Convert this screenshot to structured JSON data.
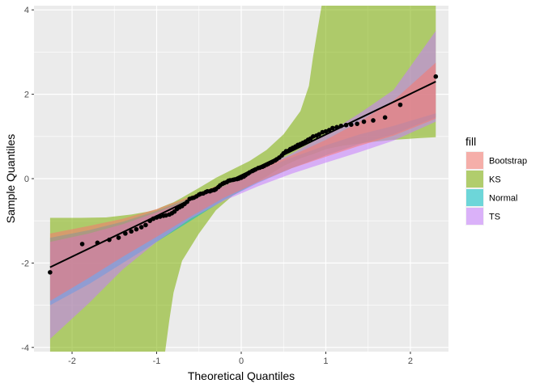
{
  "chart_data": {
    "type": "scatter",
    "title": "",
    "xlabel": "Theoretical Quantiles",
    "ylabel": "Sample Quantiles",
    "xlim": [
      -2.45,
      2.45
    ],
    "ylim": [
      -4.1,
      4.1
    ],
    "x_ticks": [
      -2,
      -1,
      0,
      1,
      2
    ],
    "y_ticks": [
      -4,
      -2,
      0,
      2,
      4
    ],
    "x_tick_labels": [
      "-2",
      "-1",
      "0",
      "1",
      "2"
    ],
    "y_tick_labels": [
      "-4",
      "-2",
      "0",
      "2",
      "4"
    ],
    "grid": true,
    "legend": {
      "title": "fill",
      "placement": "right",
      "entries": [
        {
          "name": "Bootstrap",
          "color": "#F8766D"
        },
        {
          "name": "KS",
          "color": "#7CAE00"
        },
        {
          "name": "Normal",
          "color": "#00BFC4"
        },
        {
          "name": "TS",
          "color": "#C77CFF"
        }
      ]
    },
    "bands": [
      {
        "name": "KS",
        "color": "#7CAE00",
        "x": [
          -2.26,
          -1.9,
          -1.6,
          -1.3,
          -1.1,
          -1.0,
          -0.95,
          -0.9,
          -0.85,
          -0.8,
          -0.7,
          -0.5,
          -0.3,
          -0.1,
          0.1,
          0.3,
          0.5,
          0.7,
          0.8,
          0.85,
          0.9,
          0.95,
          1.0,
          1.2,
          1.5,
          1.8,
          2.1,
          2.3
        ],
        "upper": [
          -0.93,
          -0.93,
          -0.92,
          -0.85,
          -0.78,
          -0.73,
          -0.68,
          -0.64,
          -0.6,
          -0.56,
          -0.45,
          -0.22,
          0.02,
          0.22,
          0.42,
          0.68,
          1.05,
          1.6,
          2.2,
          2.9,
          3.5,
          4.1,
          4.1,
          4.1,
          4.1,
          4.1,
          4.1,
          4.1
        ],
        "lower": [
          -4.1,
          -4.1,
          -4.1,
          -4.1,
          -4.1,
          -4.1,
          -4.1,
          -4.1,
          -3.35,
          -2.7,
          -1.95,
          -1.3,
          -0.75,
          -0.4,
          -0.18,
          0.05,
          0.3,
          0.48,
          0.55,
          0.58,
          0.62,
          0.66,
          0.7,
          0.78,
          0.86,
          0.92,
          0.96,
          0.98
        ]
      },
      {
        "name": "Normal",
        "color": "#00BFC4",
        "x": [
          -2.26,
          -1.8,
          -1.4,
          -1.0,
          -0.6,
          -0.2,
          0.2,
          0.6,
          1.0,
          1.4,
          1.8,
          2.3
        ],
        "upper": [
          -1.4,
          -1.22,
          -1.02,
          -0.76,
          -0.46,
          -0.14,
          0.19,
          0.5,
          0.79,
          1.05,
          1.25,
          1.55
        ],
        "lower": [
          -3.0,
          -2.5,
          -2.0,
          -1.5,
          -1.0,
          -0.5,
          -0.1,
          0.25,
          0.55,
          0.82,
          1.05,
          1.45
        ]
      },
      {
        "name": "TS",
        "color": "#C77CFF",
        "x": [
          -2.26,
          -1.8,
          -1.4,
          -1.0,
          -0.6,
          -0.2,
          0.2,
          0.6,
          1.0,
          1.4,
          1.8,
          2.3
        ],
        "upper": [
          -1.5,
          -1.3,
          -1.08,
          -0.8,
          -0.5,
          -0.18,
          0.22,
          0.6,
          1.05,
          1.55,
          2.1,
          3.5
        ],
        "lower": [
          -3.8,
          -2.95,
          -2.15,
          -1.5,
          -0.95,
          -0.52,
          -0.18,
          0.12,
          0.38,
          0.63,
          0.9,
          1.35
        ]
      },
      {
        "name": "Bootstrap",
        "color": "#F8766D",
        "x": [
          -2.26,
          -1.8,
          -1.4,
          -1.0,
          -0.6,
          -0.2,
          0.2,
          0.6,
          1.0,
          1.4,
          1.8,
          2.3
        ],
        "upper": [
          -1.3,
          -1.12,
          -0.95,
          -0.72,
          -0.42,
          -0.1,
          0.22,
          0.55,
          0.92,
          1.35,
          1.85,
          2.75
        ],
        "lower": [
          -2.9,
          -2.35,
          -1.85,
          -1.38,
          -0.9,
          -0.45,
          -0.08,
          0.25,
          0.52,
          0.78,
          1.02,
          1.42
        ]
      }
    ],
    "reference_line": {
      "x": [
        -2.26,
        2.3
      ],
      "y": [
        -2.1,
        2.3
      ]
    },
    "points": {
      "x": [
        -2.26,
        -1.88,
        -1.7,
        -1.56,
        -1.45,
        -1.37,
        -1.3,
        -1.24,
        -1.18,
        -1.13,
        -1.08,
        -1.04,
        -1.0,
        -0.96,
        -0.92,
        -0.89,
        -0.85,
        -0.82,
        -0.79,
        -0.76,
        -0.73,
        -0.7,
        -0.67,
        -0.64,
        -0.61,
        -0.58,
        -0.56,
        -0.53,
        -0.5,
        -0.48,
        -0.45,
        -0.42,
        -0.4,
        -0.37,
        -0.35,
        -0.32,
        -0.3,
        -0.27,
        -0.25,
        -0.22,
        -0.2,
        -0.17,
        -0.15,
        -0.13,
        -0.1,
        -0.08,
        -0.05,
        -0.03,
        0.0,
        0.03,
        0.05,
        0.08,
        0.1,
        0.13,
        0.15,
        0.17,
        0.2,
        0.22,
        0.25,
        0.27,
        0.3,
        0.32,
        0.35,
        0.37,
        0.4,
        0.42,
        0.45,
        0.48,
        0.5,
        0.53,
        0.56,
        0.58,
        0.61,
        0.64,
        0.67,
        0.7,
        0.73,
        0.76,
        0.79,
        0.82,
        0.85,
        0.89,
        0.92,
        0.96,
        1.0,
        1.04,
        1.08,
        1.13,
        1.18,
        1.24,
        1.3,
        1.37,
        1.45,
        1.56,
        1.7,
        1.88,
        2.3
      ],
      "y": [
        -2.22,
        -1.55,
        -1.52,
        -1.45,
        -1.4,
        -1.3,
        -1.25,
        -1.2,
        -1.15,
        -1.1,
        -1.0,
        -0.95,
        -0.92,
        -0.9,
        -0.88,
        -0.87,
        -0.85,
        -0.82,
        -0.78,
        -0.72,
        -0.68,
        -0.65,
        -0.6,
        -0.55,
        -0.48,
        -0.46,
        -0.45,
        -0.42,
        -0.38,
        -0.36,
        -0.35,
        -0.32,
        -0.3,
        -0.3,
        -0.28,
        -0.27,
        -0.25,
        -0.2,
        -0.16,
        -0.12,
        -0.1,
        -0.08,
        -0.05,
        -0.04,
        -0.03,
        -0.02,
        -0.01,
        0.0,
        0.02,
        0.05,
        0.08,
        0.12,
        0.15,
        0.18,
        0.2,
        0.22,
        0.25,
        0.26,
        0.28,
        0.3,
        0.33,
        0.35,
        0.38,
        0.4,
        0.43,
        0.46,
        0.5,
        0.55,
        0.6,
        0.65,
        0.66,
        0.7,
        0.73,
        0.76,
        0.8,
        0.82,
        0.85,
        0.88,
        0.92,
        0.95,
        1.0,
        1.02,
        1.05,
        1.1,
        1.12,
        1.15,
        1.2,
        1.22,
        1.25,
        1.27,
        1.28,
        1.3,
        1.35,
        1.38,
        1.45,
        1.75,
        2.42
      ]
    }
  }
}
